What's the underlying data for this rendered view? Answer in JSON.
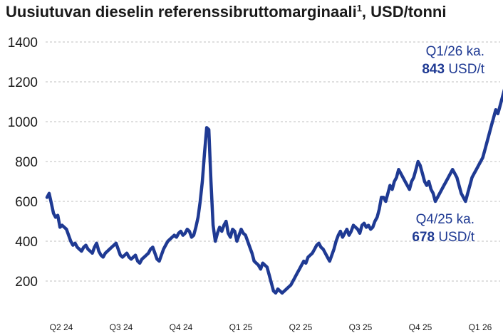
{
  "chart_data": {
    "type": "line",
    "title": "Uusiutuvan dieselin referenssibruttomarginaali",
    "title_sup": "1",
    "title_unit": ", USD/tonni",
    "ylim": [
      100,
      1400
    ],
    "yticks": [
      200,
      400,
      600,
      800,
      1000,
      1200,
      1400
    ],
    "grid": "horizontal-dashed",
    "xlabels": [
      "Q2 24",
      "Q3 24",
      "Q4 24",
      "Q1 25",
      "Q2 25",
      "Q3 25",
      "Q4 25",
      "Q1 26"
    ],
    "line_color": "#1f3a93",
    "series": [
      {
        "x_start": 0,
        "x_end": 7.75,
        "values": [
          620,
          640,
          590,
          540,
          520,
          530,
          470,
          480,
          470,
          460,
          430,
          400,
          380,
          390,
          370,
          360,
          350,
          370,
          380,
          360,
          350,
          340,
          370,
          390,
          350,
          330,
          320,
          340,
          350,
          360,
          370,
          380,
          390,
          360,
          330,
          320,
          330,
          340,
          320,
          310,
          320,
          330,
          300,
          290,
          310,
          320,
          330,
          340,
          360,
          370,
          340,
          310,
          300,
          330,
          360,
          380,
          400,
          410,
          420,
          430,
          420,
          440,
          450,
          430,
          440,
          460,
          450,
          420,
          430,
          470,
          520,
          600,
          700,
          840,
          970,
          960,
          700,
          480,
          400,
          440,
          470,
          450,
          480,
          500,
          440,
          420,
          460,
          450,
          400,
          430,
          460,
          440,
          430,
          400,
          370,
          340,
          300,
          290,
          280,
          260,
          290,
          280,
          270,
          230,
          190,
          150,
          140,
          160,
          150,
          140,
          150,
          160,
          170,
          180,
          200,
          220,
          240,
          260,
          280,
          300,
          290,
          320,
          330,
          340,
          360,
          380,
          390,
          370,
          360,
          340,
          320,
          300,
          330,
          360,
          400,
          430,
          450,
          420,
          440,
          460,
          430,
          450,
          480,
          470,
          460,
          440,
          480,
          490,
          470,
          480,
          460,
          470,
          500,
          520,
          560,
          620,
          620,
          600,
          640,
          680,
          660,
          700,
          720,
          760,
          740,
          720,
          700,
          680,
          660,
          700,
          720,
          760,
          800,
          780,
          740,
          700,
          680,
          700,
          660,
          640,
          600,
          620,
          640,
          660,
          680,
          700,
          720,
          740,
          760,
          740,
          720,
          680,
          640,
          620,
          600,
          640,
          680,
          720,
          740,
          760,
          780,
          800,
          820,
          860,
          900,
          940,
          980,
          1020,
          1060,
          1040,
          1080,
          1120,
          1160,
          1200,
          1240,
          1270
        ]
      }
    ],
    "annotations": {
      "q1": {
        "line1": "Q1/26 ka.",
        "bold": "843",
        "unit": " USD/t"
      },
      "q4": {
        "line1": "Q4/25 ka.",
        "bold": "678",
        "unit": " USD/t"
      }
    }
  }
}
